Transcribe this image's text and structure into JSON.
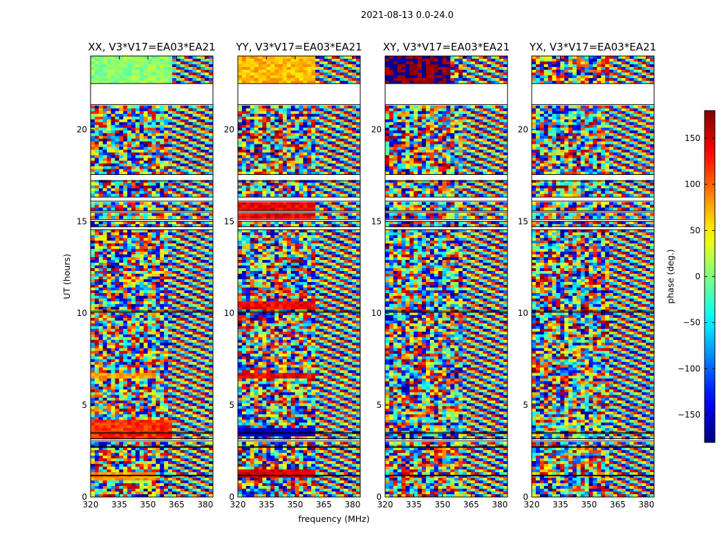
{
  "chart_data": {
    "type": "heatmap",
    "suptitle": "2021-08-13 0.0-24.0",
    "xlabel": "frequency (MHz)",
    "ylabel": "UT (hours)",
    "xlim": [
      320,
      384
    ],
    "ylim": [
      0,
      24
    ],
    "xticks": [
      320,
      335,
      350,
      365,
      380
    ],
    "yticks": [
      0,
      5,
      10,
      15,
      20
    ],
    "colorbar": {
      "label": "phase (deg.)",
      "range": [
        -180,
        180
      ],
      "ticks": [
        150,
        100,
        50,
        0,
        -50,
        -100,
        -150
      ],
      "colormap": [
        "#00007f",
        "#0000ff",
        "#00ffff",
        "#7fff7f",
        "#ffff00",
        "#ff0000",
        "#7f0000"
      ]
    },
    "data_gaps_ut": [
      [
        21.35,
        22.5
      ],
      [
        17.2,
        17.55
      ],
      [
        16.1,
        16.32
      ],
      [
        15.5,
        15.58
      ],
      [
        15.0,
        15.1
      ],
      [
        14.55,
        14.72
      ],
      [
        10.05,
        10.12
      ],
      [
        3.45,
        3.52
      ],
      [
        3.05,
        3.18
      ],
      [
        2.7,
        2.75
      ],
      [
        1.15,
        1.19
      ]
    ],
    "panels": [
      {
        "title": "XX, V3*V17=EA03*EA21",
        "coherent_bands": [
          {
            "ut": [
              21.5,
              24.0
            ],
            "freq": [
              320,
              362
            ],
            "phase_deg": 5
          },
          {
            "ut": [
              6.5,
              6.8
            ],
            "freq": [
              320,
              355
            ],
            "phase_deg": 80
          },
          {
            "ut": [
              3.2,
              4.2
            ],
            "freq": [
              320,
              363
            ],
            "phase_deg": 120
          },
          {
            "ut": [
              0.9,
              1.4
            ],
            "freq": [
              320,
              355
            ],
            "phase_deg": 80
          }
        ]
      },
      {
        "title": "YY, V3*V17=EA03*EA21",
        "coherent_bands": [
          {
            "ut": [
              21.5,
              24.0
            ],
            "freq": [
              320,
              360
            ],
            "phase_deg": 70
          },
          {
            "ut": [
              15.1,
              16.1
            ],
            "freq": [
              320,
              360
            ],
            "phase_deg": 140
          },
          {
            "ut": [
              10.2,
              10.6
            ],
            "freq": [
              320,
              360
            ],
            "phase_deg": 140
          },
          {
            "ut": [
              6.5,
              6.8
            ],
            "freq": [
              320,
              360
            ],
            "phase_deg": 140
          },
          {
            "ut": [
              3.3,
              3.8
            ],
            "freq": [
              320,
              360
            ],
            "phase_deg": -150
          },
          {
            "ut": [
              1.0,
              1.5
            ],
            "freq": [
              320,
              360
            ],
            "phase_deg": 150
          }
        ]
      },
      {
        "title": "XY, V3*V17=EA03*EA21",
        "coherent_bands": [
          {
            "ut": [
              21.5,
              24.0
            ],
            "freq": [
              320,
              355
            ],
            "phase_deg": 178
          }
        ]
      },
      {
        "title": "YX, V3*V17=EA03*EA21",
        "coherent_bands": []
      }
    ]
  }
}
